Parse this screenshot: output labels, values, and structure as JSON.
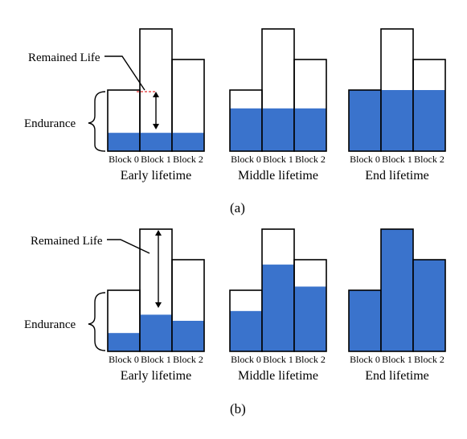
{
  "colors": {
    "fill": "#3a73cc",
    "outline": "#000000",
    "marker": "#e03030"
  },
  "block_labels": [
    "Block 0",
    "Block 1",
    "Block 2"
  ],
  "stage_labels": [
    "Early lifetime",
    "Middle lifetime",
    "End lifetime"
  ],
  "annotations": {
    "remained_life": "Remained Life",
    "endurance": "Endurance"
  },
  "panel_labels": [
    "(a)",
    "(b)"
  ],
  "panels": [
    {
      "label": "(a)",
      "endurance": [
        0.5,
        1.0,
        0.75
      ],
      "stages": [
        {
          "stage": "Early lifetime",
          "used": [
            0.15,
            0.15,
            0.15
          ]
        },
        {
          "stage": "Middle lifetime",
          "used": [
            0.35,
            0.35,
            0.35
          ]
        },
        {
          "stage": "End lifetime",
          "used": [
            0.5,
            0.5,
            0.5
          ]
        }
      ]
    },
    {
      "label": "(b)",
      "endurance": [
        0.5,
        1.0,
        0.75
      ],
      "stages": [
        {
          "stage": "Early lifetime",
          "used": [
            0.15,
            0.3,
            0.25
          ]
        },
        {
          "stage": "Middle lifetime",
          "used": [
            0.33,
            0.71,
            0.53
          ]
        },
        {
          "stage": "End lifetime",
          "used": [
            0.5,
            1.0,
            0.75
          ]
        }
      ]
    }
  ]
}
